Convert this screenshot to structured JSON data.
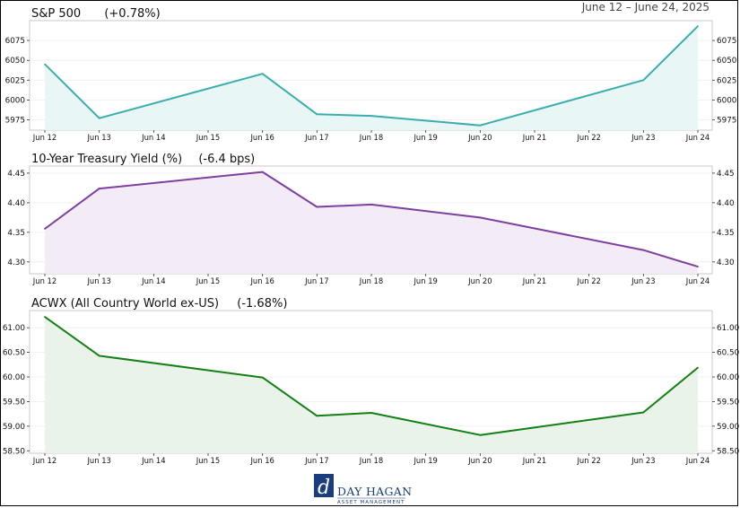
{
  "date_range": "June 12 – June 24, 2025",
  "brand": {
    "name": "DAY HAGAN",
    "sub": "ASSET MANAGEMENT",
    "monogram": "d"
  },
  "chart_data": [
    {
      "type": "area",
      "name": "S&P 500",
      "change": "(+0.78%)",
      "color": "#3aaeae",
      "fill": "#e9f6f6",
      "categories": [
        "Jun 12",
        "Jun 13",
        "Jun 14",
        "Jun 15",
        "Jun 16",
        "Jun 17",
        "Jun 18",
        "Jun 19",
        "Jun 20",
        "Jun 21",
        "Jun 22",
        "Jun 23",
        "Jun 24"
      ],
      "points": [
        {
          "i": 0,
          "v": 6045
        },
        {
          "i": 1,
          "v": 5977
        },
        {
          "i": 4,
          "v": 6033
        },
        {
          "i": 5,
          "v": 5982
        },
        {
          "i": 6,
          "v": 5980
        },
        {
          "i": 8,
          "v": 5968
        },
        {
          "i": 11,
          "v": 6025
        },
        {
          "i": 12,
          "v": 6093
        }
      ],
      "ylim": [
        5962,
        6100
      ],
      "yticks": [
        5975,
        6000,
        6025,
        6050,
        6075
      ],
      "ytick_labels": [
        "5975",
        "6000",
        "6025",
        "6050",
        "6075"
      ]
    },
    {
      "type": "area",
      "name": "10-Year Treasury Yield (%)",
      "change": "(-6.4 bps)",
      "color": "#7d3fa0",
      "fill": "#f3ecf6",
      "categories": [
        "Jun 12",
        "Jun 13",
        "Jun 14",
        "Jun 15",
        "Jun 16",
        "Jun 17",
        "Jun 18",
        "Jun 19",
        "Jun 20",
        "Jun 21",
        "Jun 22",
        "Jun 23",
        "Jun 24"
      ],
      "points": [
        {
          "i": 0,
          "v": 4.356
        },
        {
          "i": 1,
          "v": 4.424
        },
        {
          "i": 4,
          "v": 4.452
        },
        {
          "i": 5,
          "v": 4.393
        },
        {
          "i": 6,
          "v": 4.397
        },
        {
          "i": 8,
          "v": 4.375
        },
        {
          "i": 11,
          "v": 4.32
        },
        {
          "i": 12,
          "v": 4.292
        }
      ],
      "ylim": [
        4.28,
        4.462
      ],
      "yticks": [
        4.3,
        4.35,
        4.4,
        4.45
      ],
      "ytick_labels": [
        "4.30",
        "4.35",
        "4.40",
        "4.45"
      ]
    },
    {
      "type": "area",
      "name": "ACWX (All Country World ex-US)",
      "change": "(-1.68%)",
      "color": "#138013",
      "fill": "#eaf3ea",
      "categories": [
        "Jun 12",
        "Jun 13",
        "Jun 14",
        "Jun 15",
        "Jun 16",
        "Jun 17",
        "Jun 18",
        "Jun 19",
        "Jun 20",
        "Jun 21",
        "Jun 22",
        "Jun 23",
        "Jun 24"
      ],
      "points": [
        {
          "i": 0,
          "v": 61.22
        },
        {
          "i": 1,
          "v": 60.43
        },
        {
          "i": 4,
          "v": 59.99
        },
        {
          "i": 5,
          "v": 59.21
        },
        {
          "i": 6,
          "v": 59.27
        },
        {
          "i": 8,
          "v": 58.82
        },
        {
          "i": 11,
          "v": 59.28
        },
        {
          "i": 12,
          "v": 60.19
        }
      ],
      "ylim": [
        58.45,
        61.35
      ],
      "yticks": [
        58.5,
        59.0,
        59.5,
        60.0,
        60.5,
        61.0
      ],
      "ytick_labels": [
        "58.50",
        "59.00",
        "59.50",
        "60.00",
        "60.50",
        "61.00"
      ]
    }
  ]
}
